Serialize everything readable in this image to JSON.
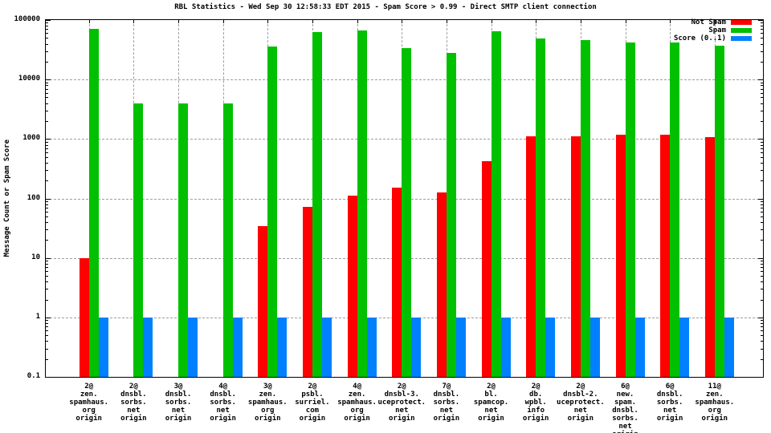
{
  "chart_data": {
    "type": "bar",
    "title": "RBL Statistics - Wed Sep 30 12:58:33 EDT 2015 - Spam Score > 0.99 - Direct SMTP client connection",
    "ylabel": "Message Count or Spam Score",
    "xlabel": "",
    "y_scale": "log10",
    "ylim": [
      0.1,
      100000
    ],
    "y_tick_labels": [
      "100000",
      "10000",
      "1000",
      "100",
      "10",
      "1",
      "0.1"
    ],
    "grid": true,
    "legend_position": "top-right-inside",
    "categories": [
      [
        "2@",
        "zen.",
        "spamhaus.",
        "org",
        "origin"
      ],
      [
        "2@",
        "dnsbl.",
        "sorbs.",
        "net",
        "origin"
      ],
      [
        "3@",
        "dnsbl.",
        "sorbs.",
        "net",
        "origin"
      ],
      [
        "4@",
        "dnsbl.",
        "sorbs.",
        "net",
        "origin"
      ],
      [
        "3@",
        "zen.",
        "spamhaus.",
        "org",
        "origin"
      ],
      [
        "2@",
        "psbl.",
        "surriel.",
        "com",
        "origin"
      ],
      [
        "4@",
        "zen.",
        "spamhaus.",
        "org",
        "origin"
      ],
      [
        "2@",
        "dnsbl-3.",
        "uceprotect.",
        "net",
        "origin"
      ],
      [
        "7@",
        "dnsbl.",
        "sorbs.",
        "net",
        "origin"
      ],
      [
        "2@",
        "bl.",
        "spamcop.",
        "net",
        "origin"
      ],
      [
        "2@",
        "db.",
        "wpbl.",
        "info",
        "origin"
      ],
      [
        "2@",
        "dnsbl-2.",
        "uceprotect.",
        "net",
        "origin"
      ],
      [
        "6@",
        "new.",
        "spam.",
        "dnsbl.",
        "sorbs.",
        "net",
        "origin"
      ],
      [
        "6@",
        "dnsbl.",
        "sorbs.",
        "net",
        "origin"
      ],
      [
        "11@",
        "zen.",
        "spamhaus.",
        "org",
        "origin"
      ]
    ],
    "series": [
      {
        "name": "Not Spam",
        "color": "#ff0000",
        "values": [
          10,
          0,
          0,
          0,
          34,
          72,
          110,
          150,
          127,
          420,
          1100,
          1100,
          1170,
          1170,
          1060
        ]
      },
      {
        "name": "Spam",
        "color": "#00c000",
        "values": [
          70000,
          3900,
          3900,
          3900,
          36000,
          62000,
          67000,
          34000,
          28000,
          64000,
          49000,
          46000,
          42000,
          42000,
          37000
        ]
      },
      {
        "name": "Score (0..1)",
        "color": "#0080ff",
        "values": [
          1,
          1,
          1,
          1,
          1,
          1,
          1,
          1,
          1,
          1,
          1,
          1,
          1,
          1,
          1
        ]
      }
    ]
  },
  "colors": {
    "grid": "#9e9e9e",
    "border": "#000000",
    "background": "#ffffff"
  }
}
